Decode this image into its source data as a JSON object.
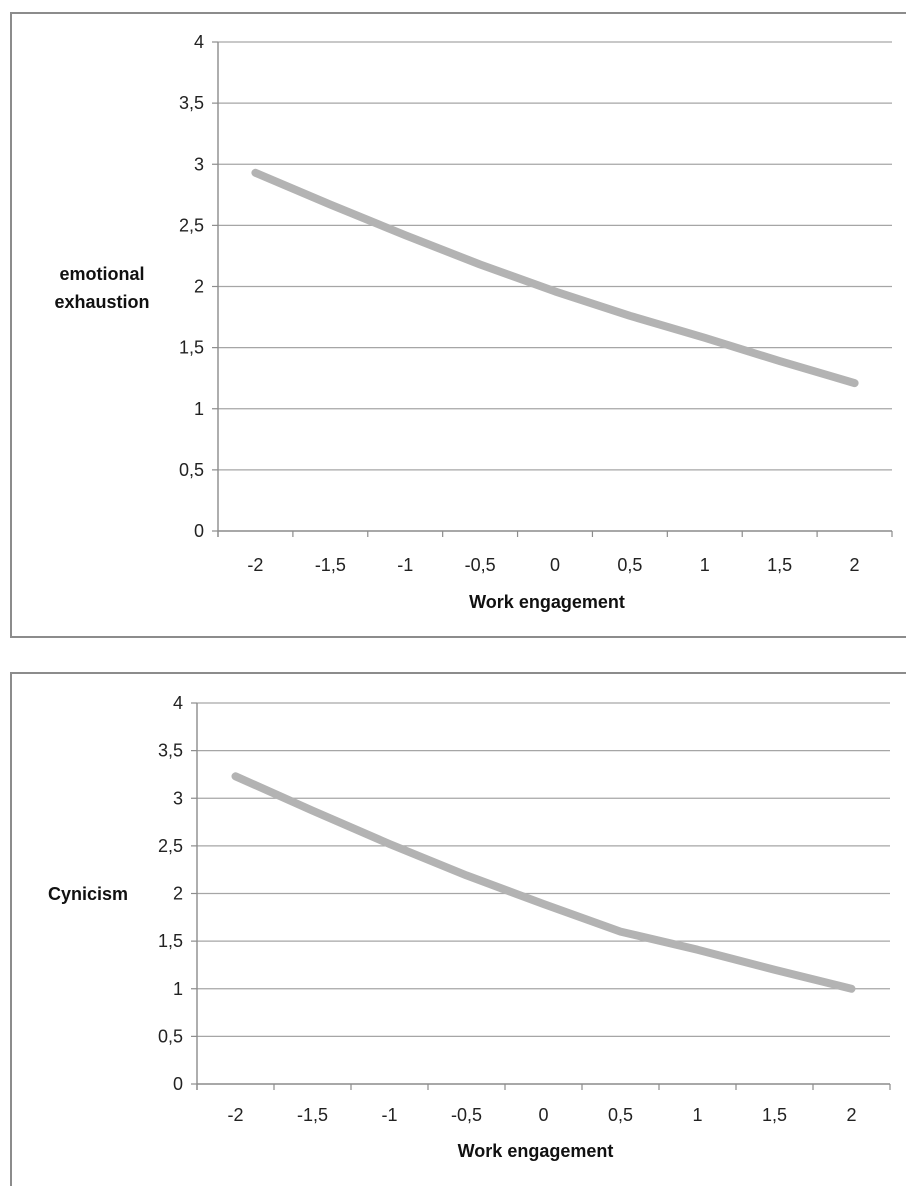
{
  "chart_data": [
    {
      "type": "line",
      "title": "",
      "ylabel_lines": [
        "emotional",
        "exhaustion"
      ],
      "xlabel": "Work engagement",
      "xticks": [
        -2,
        -1.5,
        -1,
        -0.5,
        0,
        0.5,
        1,
        1.5,
        2
      ],
      "xtick_labels": [
        "-2",
        "-1,5",
        "-1",
        "-0,5",
        "0",
        "0,5",
        "1",
        "1,5",
        "2"
      ],
      "yticks": [
        0,
        0.5,
        1,
        1.5,
        2,
        2.5,
        3,
        3.5,
        4
      ],
      "ytick_labels": [
        "0",
        "0,5",
        "1",
        "1,5",
        "2",
        "2,5",
        "3",
        "3,5",
        "4"
      ],
      "xlim": [
        -2.25,
        2.25
      ],
      "ylim": [
        0,
        4
      ],
      "grid": "horizontal",
      "legend": "none",
      "series": [
        {
          "color": "#b3b3b3",
          "x": [
            -2,
            -1.5,
            -1,
            -0.5,
            0,
            0.5,
            1,
            1.5,
            2
          ],
          "y": [
            2.93,
            2.67,
            2.42,
            2.18,
            1.96,
            1.76,
            1.58,
            1.39,
            1.21
          ]
        }
      ]
    },
    {
      "type": "line",
      "title": "",
      "ylabel_lines": [
        "Cynicism"
      ],
      "xlabel": "Work engagement",
      "xticks": [
        -2,
        -1.5,
        -1,
        -0.5,
        0,
        0.5,
        1,
        1.5,
        2
      ],
      "xtick_labels": [
        "-2",
        "-1,5",
        "-1",
        "-0,5",
        "0",
        "0,5",
        "1",
        "1,5",
        "2"
      ],
      "yticks": [
        0,
        0.5,
        1,
        1.5,
        2,
        2.5,
        3,
        3.5,
        4
      ],
      "ytick_labels": [
        "0",
        "0,5",
        "1",
        "1,5",
        "2",
        "2,5",
        "3",
        "3,5",
        "4"
      ],
      "xlim": [
        -2.25,
        2.25
      ],
      "ylim": [
        0,
        4
      ],
      "grid": "horizontal",
      "legend": "none",
      "series": [
        {
          "color": "#b3b3b3",
          "x": [
            -2,
            -1.5,
            -1,
            -0.5,
            0,
            0.5,
            1,
            1.5,
            2
          ],
          "y": [
            3.23,
            2.87,
            2.52,
            2.19,
            1.89,
            1.6,
            1.41,
            1.2,
            1.0
          ]
        }
      ]
    }
  ]
}
